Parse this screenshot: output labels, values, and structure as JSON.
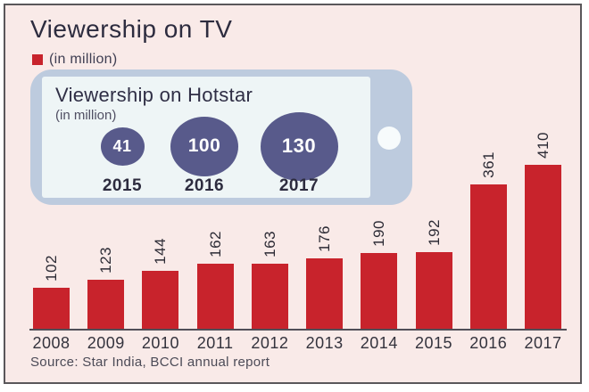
{
  "header": {
    "title": "Viewership on TV",
    "legend_label": "(in million)"
  },
  "source_line": "Source: Star India, BCCI annual report",
  "colors": {
    "bar_red": "#c8232c",
    "bubble_purple": "#585a8b",
    "background_pink": "#f9eae8",
    "phone_body_blue": "#bdcbde",
    "phone_screen": "#eef5f6"
  },
  "chart_data": [
    {
      "type": "bar",
      "title": "Viewership on TV",
      "unit_label": "(in million)",
      "categories": [
        "2008",
        "2009",
        "2010",
        "2011",
        "2012",
        "2013",
        "2014",
        "2015",
        "2016",
        "2017"
      ],
      "values": [
        102,
        123,
        144,
        162,
        163,
        176,
        190,
        192,
        361,
        410
      ],
      "bar_color": "#c8232c",
      "value_labels": "rotated-90-above-bars",
      "ylim": [
        0,
        460
      ],
      "grid": false,
      "source": "Source: Star India, BCCI annual report"
    },
    {
      "type": "bubble",
      "title": "Viewership on Hotstar",
      "unit_label": "(in million)",
      "categories": [
        "2015",
        "2016",
        "2017"
      ],
      "values": [
        41,
        100,
        130
      ],
      "bubble_color": "#585a8b",
      "value_labels": "inside-bubbles"
    }
  ]
}
